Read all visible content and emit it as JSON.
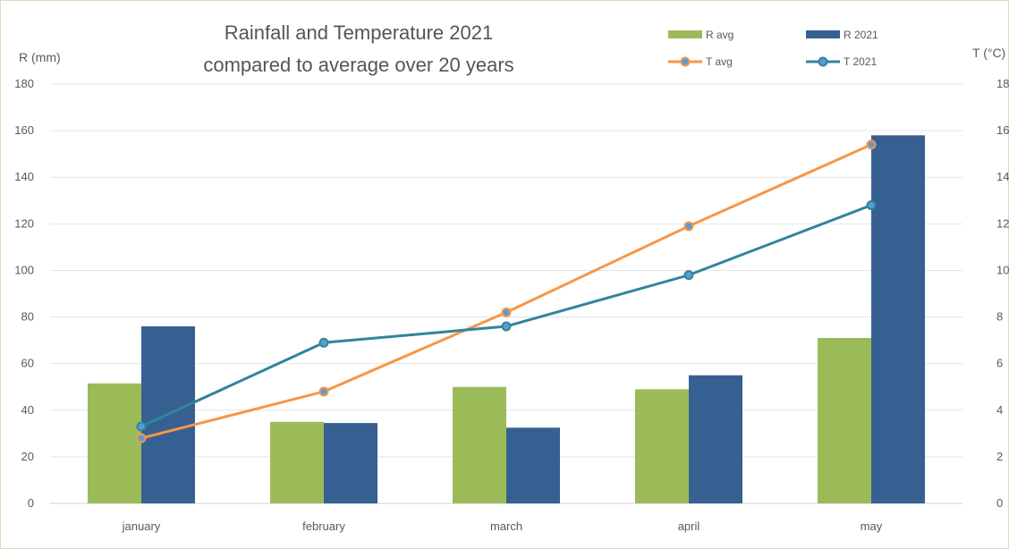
{
  "chart_data": {
    "type": "bar",
    "title": "Rainfall and Temperature 2021",
    "subtitle": "compared to average over 20 years",
    "ylabel": "R (mm)",
    "y2label": "T (°C)",
    "categories": [
      "january",
      "february",
      "march",
      "april",
      "may"
    ],
    "ylim": [
      0,
      180
    ],
    "y_ticks": [
      "0",
      "20",
      "40",
      "60",
      "80",
      "100",
      "120",
      "140",
      "160",
      "180"
    ],
    "y2lim": [
      0,
      18
    ],
    "y2_ticks": [
      "0",
      "2",
      "4",
      "6",
      "8",
      "10",
      "12",
      "14",
      "16",
      "18"
    ],
    "grid": true,
    "legend_position": "top-right",
    "series": [
      {
        "name": "R avg",
        "kind": "bar",
        "axis": "left",
        "color": "#9bbb59",
        "values": [
          51.5,
          35,
          50,
          49,
          71
        ]
      },
      {
        "name": "R 2021",
        "kind": "bar",
        "axis": "left",
        "color": "#376092",
        "values": [
          76,
          34.5,
          32.5,
          55,
          158
        ]
      },
      {
        "name": "T avg",
        "kind": "line",
        "axis": "right",
        "color": "#f79646",
        "values": [
          2.8,
          4.8,
          8.2,
          11.9,
          15.4
        ]
      },
      {
        "name": "T 2021",
        "kind": "line",
        "axis": "right",
        "color": "#31849b",
        "values": [
          3.3,
          6.9,
          7.6,
          9.8,
          12.8
        ]
      }
    ]
  }
}
